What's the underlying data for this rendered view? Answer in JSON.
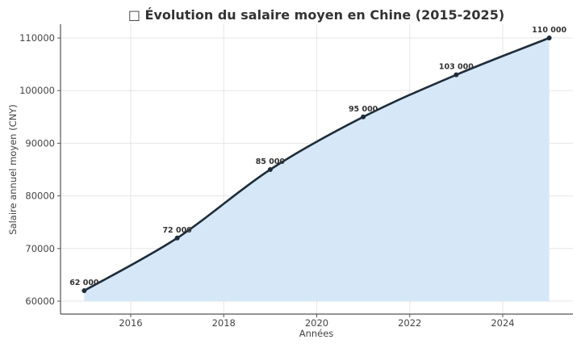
{
  "chart_data": {
    "type": "area",
    "title": "□ Évolution du salaire moyen en Chine (2015-2025)",
    "xlabel": "Années",
    "ylabel": "Salaire annuel moyen (CNY)",
    "x": [
      2015,
      2017,
      2019,
      2021,
      2023,
      2025
    ],
    "series": [
      {
        "name": "Salaire annuel moyen",
        "values": [
          62000,
          72000,
          85000,
          95000,
          103000,
          110000
        ],
        "labels": [
          "62 000",
          "72 000",
          "85 000",
          "95 000",
          "103 000",
          "110 000"
        ],
        "line_color": "#1f2d3a",
        "fill_color": "#d6e8f7"
      }
    ],
    "xticks": [
      2016,
      2018,
      2020,
      2022,
      2024
    ],
    "yticks": [
      60000,
      70000,
      80000,
      90000,
      100000,
      110000
    ],
    "xlim": [
      2014.5,
      2025.5
    ],
    "ylim": [
      58000,
      112000
    ],
    "grid": true,
    "legend": null
  }
}
